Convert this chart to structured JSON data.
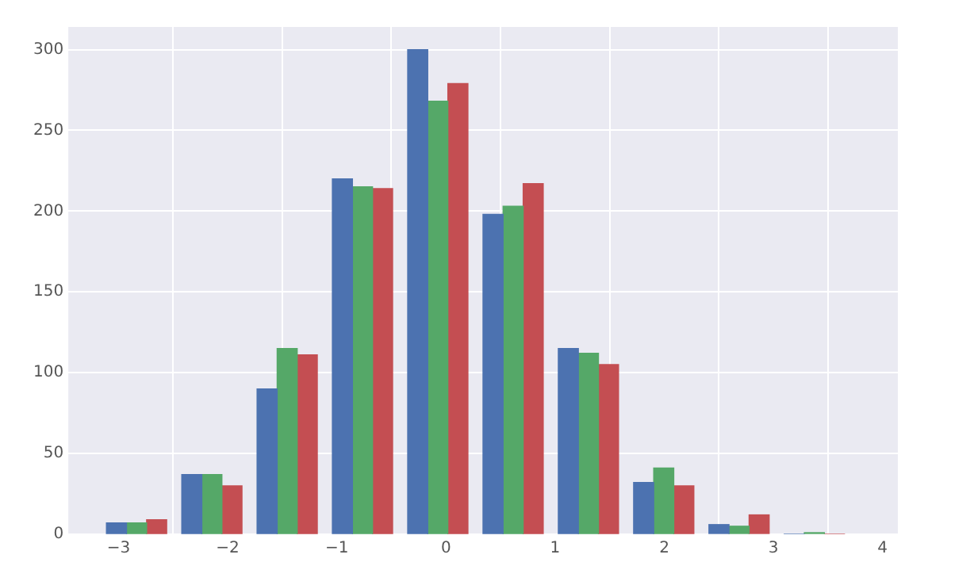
{
  "chart_data": {
    "type": "histogram",
    "bins": [
      -3.18,
      -2.49,
      -1.8,
      -1.11,
      -0.42,
      0.27,
      0.96,
      1.65,
      2.34,
      3.03,
      3.72
    ],
    "series": [
      {
        "color": "#4c72b0",
        "values": [
          7,
          37,
          90,
          220,
          300,
          198,
          115,
          32,
          6,
          0
        ]
      },
      {
        "color": "#55a868",
        "values": [
          7,
          37,
          115,
          215,
          268,
          203,
          112,
          41,
          5,
          1
        ]
      },
      {
        "color": "#c44e52",
        "values": [
          9,
          30,
          111,
          214,
          279,
          217,
          105,
          30,
          12,
          0
        ]
      }
    ],
    "xlim": [
      -3.46,
      4.14
    ],
    "xticks": [
      {
        "value": -3,
        "label": "−3"
      },
      {
        "value": -2,
        "label": "−2"
      },
      {
        "value": -1,
        "label": "−1"
      },
      0,
      1,
      2,
      3,
      4
    ],
    "ylim": [
      0,
      314
    ],
    "yticks": [
      0,
      50,
      100,
      150,
      200,
      250,
      300
    ],
    "grid": true
  }
}
